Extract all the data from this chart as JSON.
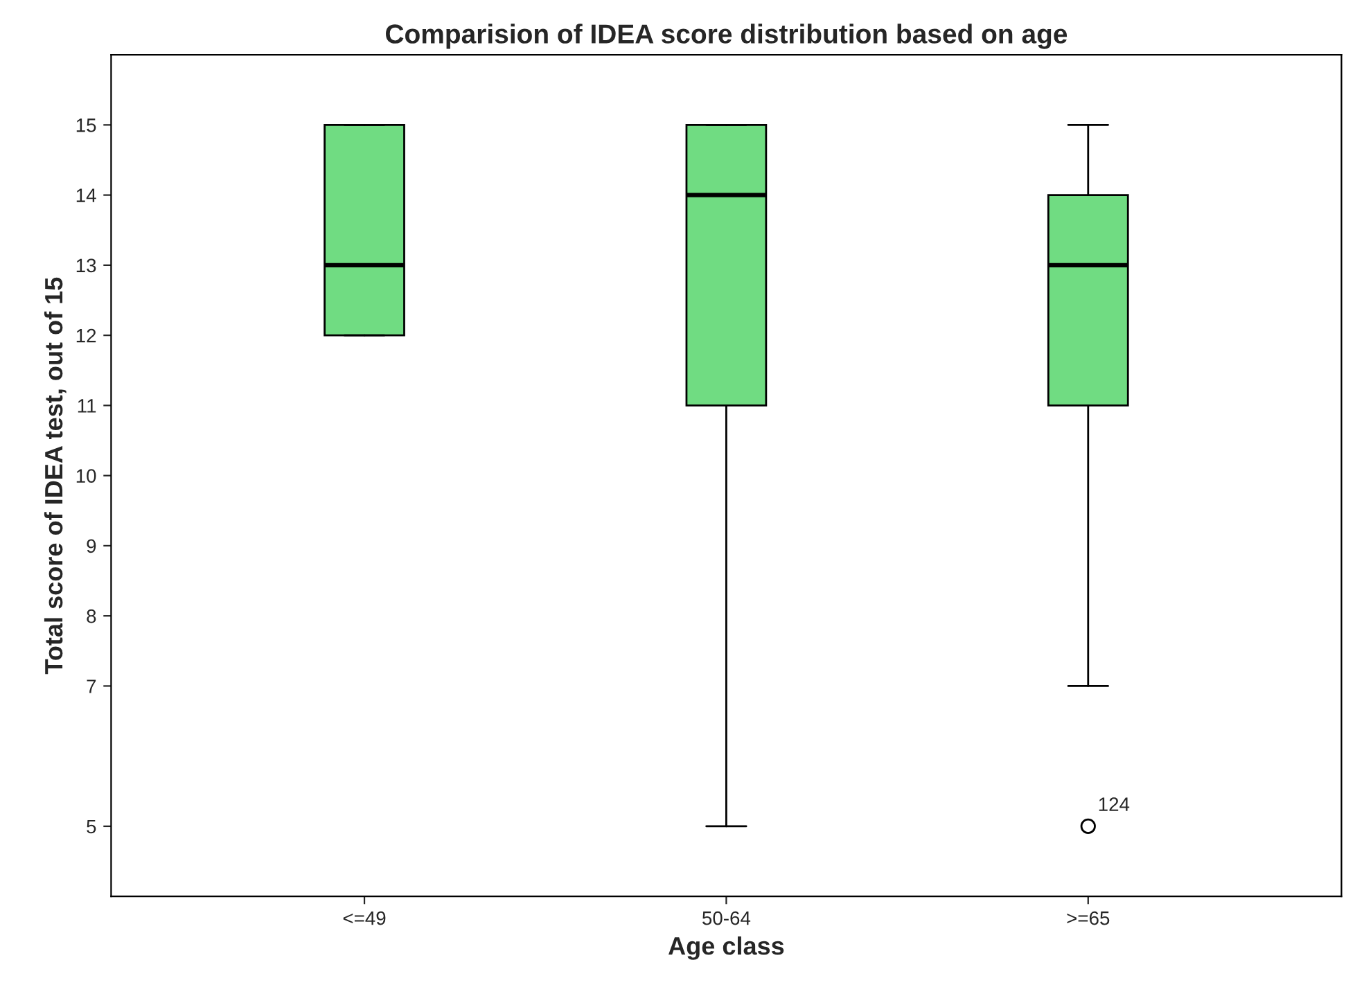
{
  "chart_data": {
    "type": "box",
    "title": "Comparision of IDEA score distribution based on age",
    "xlabel": "Age class",
    "ylabel": "Total score of IDEA test, out of 15",
    "categories": [
      "<=49",
      "50-64",
      ">=65"
    ],
    "series": [
      {
        "color": "#70dc82",
        "boxes": [
          {
            "low": 12,
            "q1": 12,
            "median": 13,
            "q3": 15,
            "high": 15
          },
          {
            "low": 5,
            "q1": 11,
            "median": 14,
            "q3": 15,
            "high": 15
          },
          {
            "low": 7,
            "q1": 11,
            "median": 13,
            "q3": 14,
            "high": 15,
            "outliers": [
              5
            ]
          }
        ]
      }
    ],
    "ylim": [
      4,
      16
    ],
    "yticks": [
      5,
      7,
      8,
      9,
      10,
      11,
      12,
      13,
      14,
      15
    ],
    "annotations": [
      "124"
    ],
    "grid": false,
    "legend": false
  }
}
